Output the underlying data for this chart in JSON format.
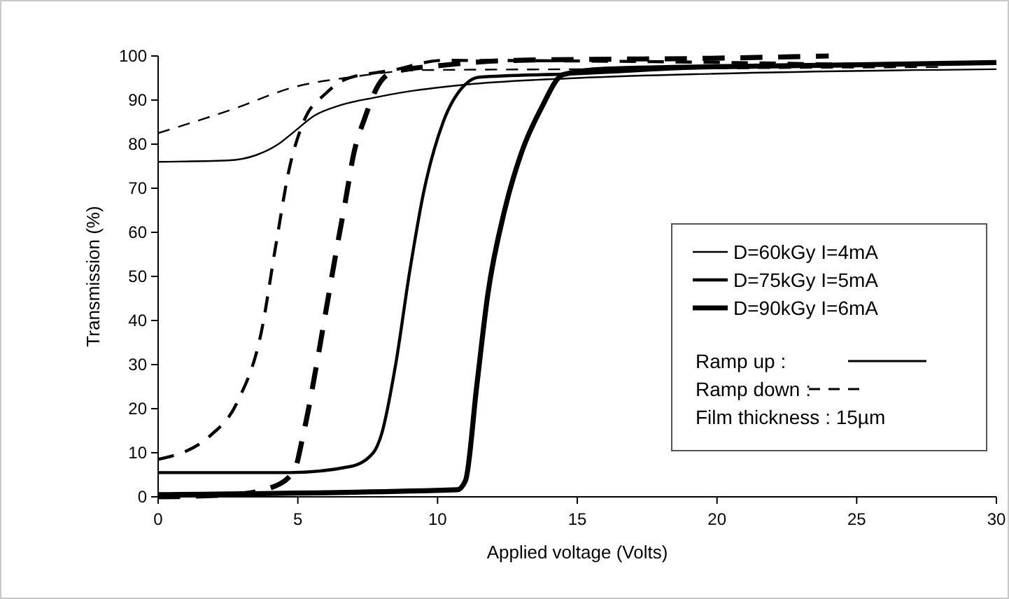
{
  "chart_data": {
    "type": "line",
    "xlabel": "Applied voltage (Volts)",
    "ylabel": "Transmission (%)",
    "xlim": [
      0,
      30
    ],
    "ylim": [
      0,
      100
    ],
    "xticks": [
      0,
      5,
      10,
      15,
      20,
      25,
      30
    ],
    "yticks": [
      0,
      10,
      20,
      30,
      40,
      50,
      60,
      70,
      80,
      90,
      100
    ],
    "grid": false,
    "legend": "right",
    "marker": "none",
    "series": [
      {
        "name": "D=60kGy I=4mA",
        "color": "#000000",
        "line_style": "solid",
        "x": [
          0,
          2.5,
          3.5,
          4.3,
          4.9,
          5.6,
          6.5,
          7.7,
          9,
          11,
          15,
          20,
          30
        ],
        "values": [
          76,
          76.3,
          77.5,
          80,
          83,
          86.5,
          88.8,
          90.5,
          92,
          93.5,
          95,
          96,
          97
        ]
      },
      {
        "name": "D=75kGy I=5mA",
        "color": "#000000",
        "line_style": "solid",
        "x": [
          0,
          4.7,
          6.9,
          7.7,
          8,
          8.5,
          9,
          9.5,
          10.2,
          11,
          11.5,
          15,
          20,
          30
        ],
        "values": [
          5.5,
          5.5,
          6.9,
          10,
          14.3,
          30,
          51,
          69,
          85,
          93.6,
          95.2,
          96,
          97.5,
          98.5
        ]
      },
      {
        "name": "D=90kGy I=6mA",
        "color": "#000000",
        "line_style": "solid",
        "x": [
          0,
          10.7,
          11,
          11.4,
          11.8,
          12.4,
          13,
          13.7,
          14.5,
          16,
          25,
          30
        ],
        "values": [
          0.5,
          1.6,
          3.7,
          25,
          46,
          65,
          78,
          88,
          95.8,
          97,
          98,
          98.5
        ]
      },
      {
        "color": "#000000",
        "line_style": "dashed",
        "x": [
          0,
          2.7,
          4.9,
          6.9,
          9.4,
          15,
          28
        ],
        "values": [
          82.5,
          88,
          93,
          95.2,
          96.8,
          97,
          97.5
        ]
      },
      {
        "color": "#000000",
        "line_style": "dashed",
        "x": [
          0,
          1.85,
          2.85,
          3.7,
          4.2,
          4.7,
          5.2,
          6,
          6.7,
          8.4,
          10.2,
          26
        ],
        "values": [
          8.5,
          13.8,
          21.7,
          37.6,
          56.6,
          74.6,
          85,
          91.5,
          94.7,
          96.8,
          99,
          98
        ]
      },
      {
        "color": "#000000",
        "line_style": "dashed",
        "x": [
          0,
          2.7,
          4,
          4.86,
          5.2,
          5.7,
          6,
          6.4,
          6.7,
          7,
          7.4,
          7.9,
          8.4,
          10.2,
          12.7,
          20,
          24
        ],
        "values": [
          0,
          0.5,
          2,
          5.8,
          14.3,
          31,
          42,
          56.6,
          67,
          77.8,
          86,
          93.6,
          96.3,
          97.9,
          99,
          99.5,
          100
        ]
      }
    ],
    "annotations": [
      "Ramp up :",
      "Ramp down :",
      "Film thickness : 15µm"
    ]
  }
}
